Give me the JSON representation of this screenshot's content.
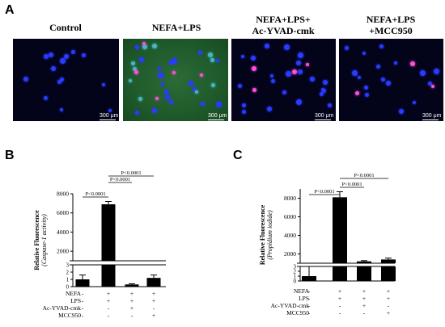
{
  "panel_a": {
    "letter": "A",
    "images": [
      {
        "title_lines": [
          "Control"
        ],
        "scale_label": "300 μm"
      },
      {
        "title_lines": [
          "NEFA+LPS"
        ],
        "scale_label": "300 μm"
      },
      {
        "title_lines": [
          "NEFA+LPS+",
          "Ac-YVAD-cmk"
        ],
        "scale_label": "300 μm"
      },
      {
        "title_lines": [
          "NEFA+LPS",
          "+MCC950"
        ],
        "scale_label": "300 μm"
      }
    ]
  },
  "condition_rows": [
    "NEFA",
    "LPS",
    "Ac-YVAD-cmk",
    "MCC950"
  ],
  "chart_data": [
    {
      "panel": "B",
      "type": "bar",
      "ylabel_lines": [
        "Relative Fluorescence",
        "(Caspase-1 activity)"
      ],
      "categories": [
        "Control",
        "NEFA+LPS",
        "NEFA+LPS+Ac-YVAD-cmk",
        "NEFA+LPS+MCC950"
      ],
      "values": [
        1.0,
        6900,
        0.3,
        1.2
      ],
      "errors": [
        0.6,
        300,
        0.1,
        0.4
      ],
      "broken_axis": {
        "lower": [
          0,
          3
        ],
        "upper": [
          1000,
          8000
        ]
      },
      "yticks_lower": [
        "0",
        "1",
        "2",
        "3"
      ],
      "yticks_upper": [
        "2000",
        "4000",
        "6000",
        "8000"
      ],
      "signs": [
        [
          "-",
          "+",
          "+",
          "+"
        ],
        [
          "-",
          "+",
          "+",
          "+"
        ],
        [
          "-",
          "-",
          "+",
          "-"
        ],
        [
          "-",
          "-",
          "-",
          "+"
        ]
      ],
      "comparisons": [
        {
          "from": 1,
          "to": 2,
          "label": "P<0.0001"
        },
        {
          "from": 1,
          "to": 3,
          "label": "P<0.0001"
        },
        {
          "from": 0,
          "to": 1,
          "label": "P<0.0001"
        }
      ]
    },
    {
      "panel": "C",
      "type": "bar",
      "ylabel_lines": [
        "Relative Fluorescence",
        "(Propidium iodide)"
      ],
      "categories": [
        "Control",
        "NEFA+LPS",
        "NEFA+LPS+Ac-YVAD-cmk",
        "NEFA+LPS+MCC950"
      ],
      "values": [
        1.0,
        8100,
        1200,
        1400
      ],
      "errors": [
        2.0,
        600,
        80,
        150
      ],
      "broken_axis": {
        "lower": [
          0,
          3
        ],
        "upper": [
          1000,
          9000
        ]
      },
      "yticks_lower": [
        "0",
        "1",
        "2",
        "3"
      ],
      "yticks_upper": [
        "2000",
        "4000",
        "6000",
        "8000"
      ],
      "signs": [
        [
          "-",
          "+",
          "+",
          "+"
        ],
        [
          "-",
          "+",
          "+",
          "+"
        ],
        [
          "-",
          "-",
          "+",
          "-"
        ],
        [
          "-",
          "-",
          "-",
          "+"
        ]
      ],
      "comparisons": [
        {
          "from": 1,
          "to": 3,
          "label": "P<0.0001"
        },
        {
          "from": 1,
          "to": 2,
          "label": "P<0.0001"
        },
        {
          "from": 0,
          "to": 1,
          "label": "P<0.0001"
        }
      ]
    }
  ],
  "colors": {
    "bar": "#000000",
    "nuclei": "#2a3bff",
    "pi_cells": "#ff4fd8",
    "green_bg": "#1f5a2b",
    "dark_bg": "#03031a"
  }
}
